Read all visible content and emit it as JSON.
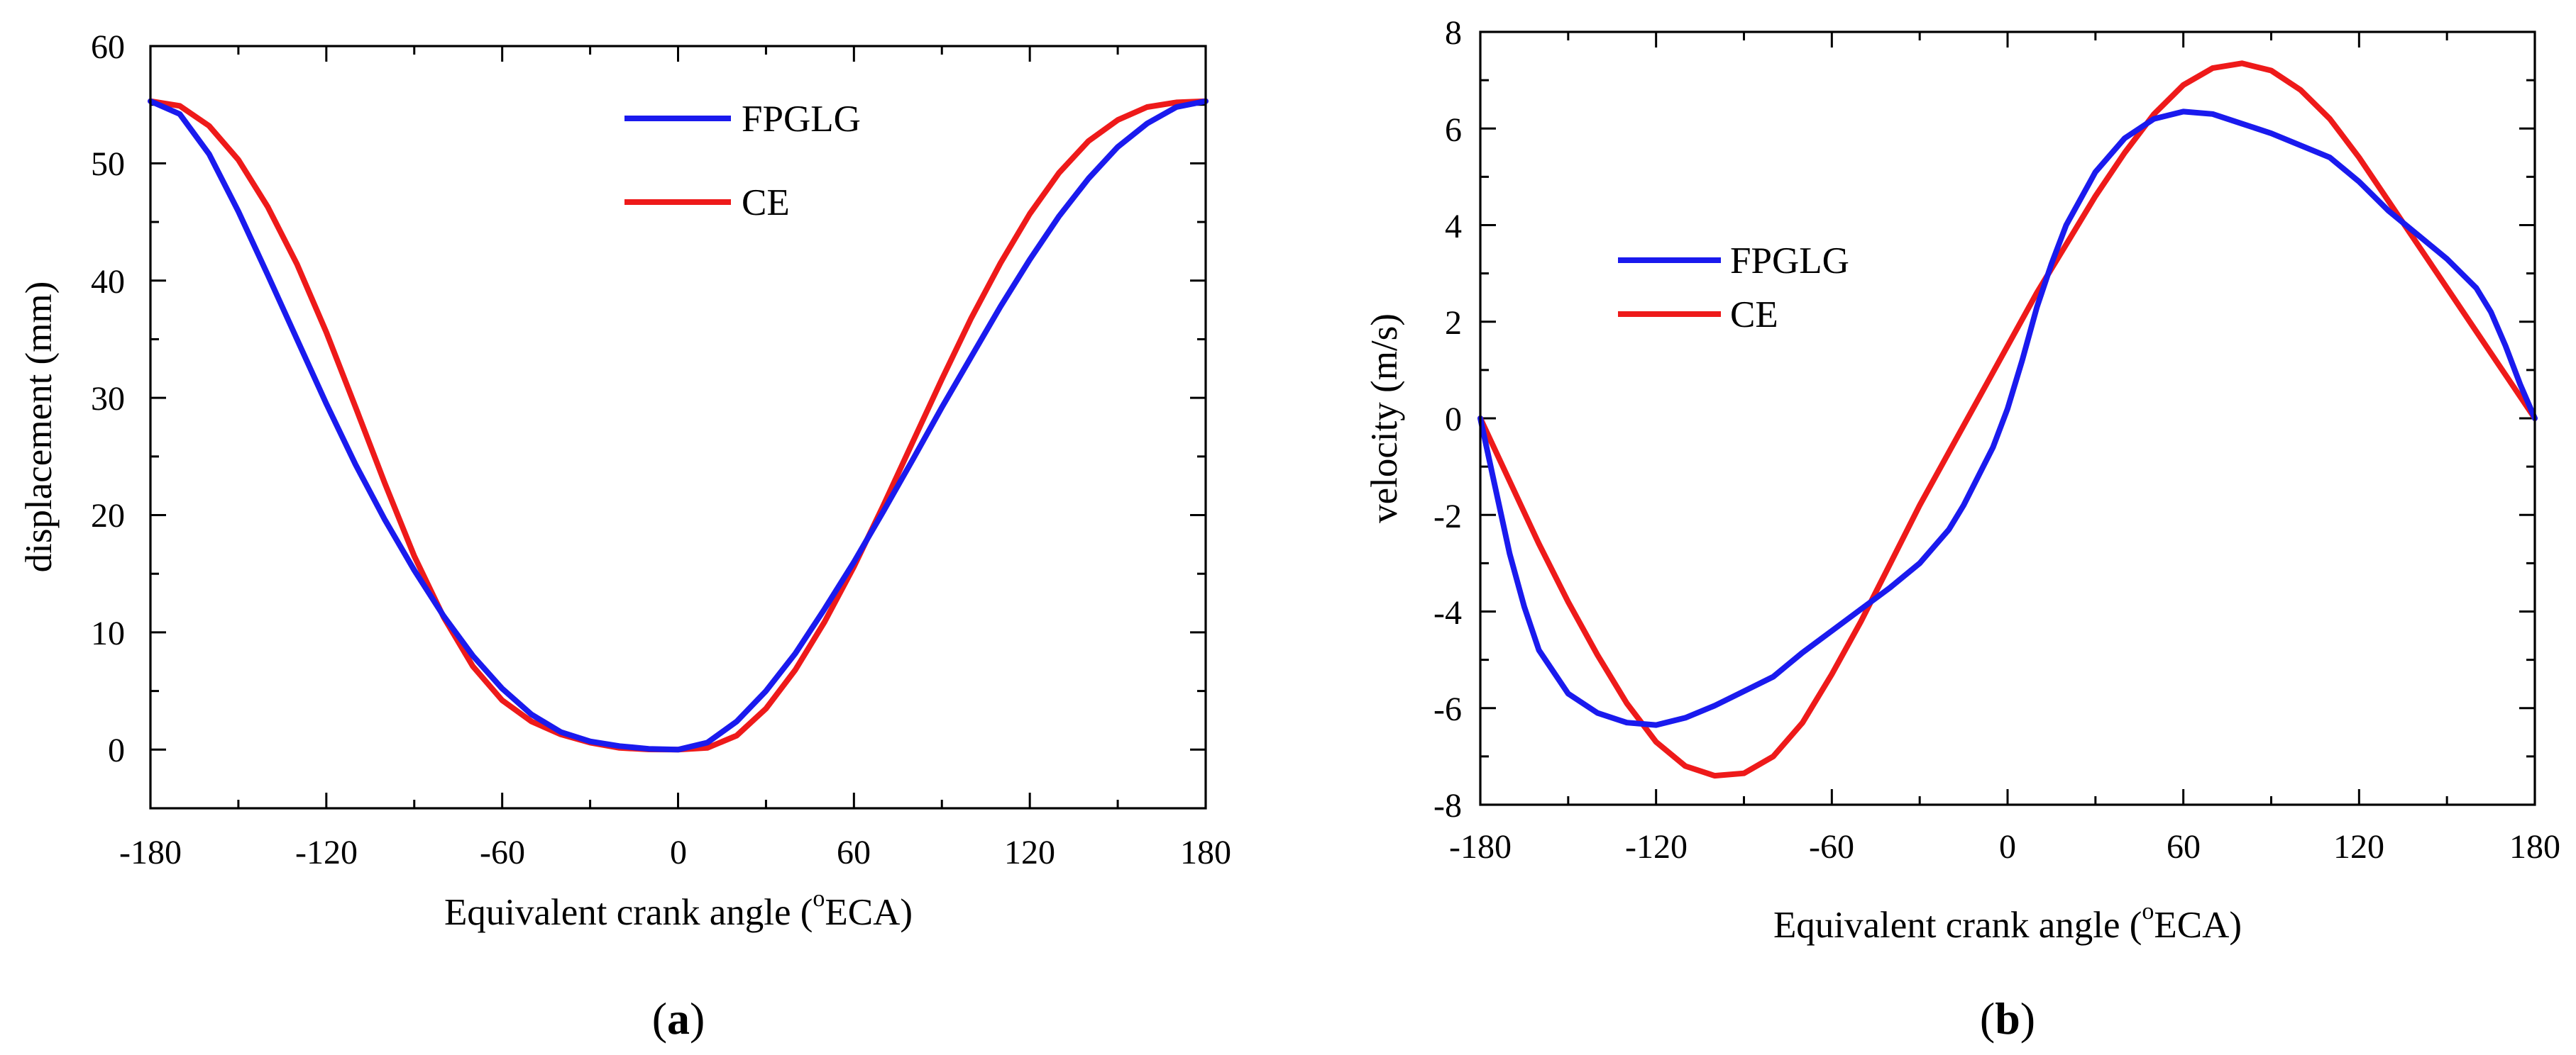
{
  "chart_data": [
    {
      "type": "line",
      "panel_label": "a",
      "xlabel": "Equivalent crank angle (",
      "xlabel_superscript": "o",
      "xlabel_suffix": "ECA)",
      "ylabel": "displacement (mm)",
      "xlim": [
        -180,
        180
      ],
      "ylim": [
        -5,
        60
      ],
      "xticks": [
        "-180",
        "-120",
        "-60",
        "0",
        "60",
        "120",
        "180"
      ],
      "yticks": [
        "0",
        "10",
        "20",
        "30",
        "40",
        "50",
        "60"
      ],
      "legend_position": "top-center",
      "series": [
        {
          "name": "FPGLG",
          "color": "#1a1aee",
          "points": [
            [
              -180,
              55.3
            ],
            [
              -170,
              54.2
            ],
            [
              -160,
              50.8
            ],
            [
              -150,
              45.9
            ],
            [
              -140,
              40.5
            ],
            [
              -130,
              35.0
            ],
            [
              -120,
              29.5
            ],
            [
              -110,
              24.3
            ],
            [
              -100,
              19.6
            ],
            [
              -90,
              15.3
            ],
            [
              -80,
              11.4
            ],
            [
              -70,
              8.0
            ],
            [
              -60,
              5.2
            ],
            [
              -50,
              3.0
            ],
            [
              -40,
              1.5
            ],
            [
              -30,
              0.7
            ],
            [
              -20,
              0.3
            ],
            [
              -10,
              0.07
            ],
            [
              0,
              0
            ],
            [
              10,
              0.6
            ],
            [
              20,
              2.4
            ],
            [
              30,
              5.0
            ],
            [
              40,
              8.2
            ],
            [
              50,
              12.0
            ],
            [
              60,
              16.0
            ],
            [
              70,
              20.3
            ],
            [
              80,
              24.7
            ],
            [
              90,
              29.2
            ],
            [
              100,
              33.5
            ],
            [
              110,
              37.8
            ],
            [
              120,
              41.8
            ],
            [
              130,
              45.5
            ],
            [
              140,
              48.7
            ],
            [
              150,
              51.4
            ],
            [
              160,
              53.4
            ],
            [
              170,
              54.8
            ],
            [
              180,
              55.3
            ]
          ]
        },
        {
          "name": "CE",
          "color": "#ee1a1a",
          "points": [
            [
              -180,
              55.3
            ],
            [
              -170,
              54.9
            ],
            [
              -160,
              53.2
            ],
            [
              -150,
              50.3
            ],
            [
              -140,
              46.3
            ],
            [
              -130,
              41.4
            ],
            [
              -120,
              35.6
            ],
            [
              -110,
              29.2
            ],
            [
              -100,
              22.7
            ],
            [
              -90,
              16.5
            ],
            [
              -80,
              11.3
            ],
            [
              -70,
              7.1
            ],
            [
              -60,
              4.2
            ],
            [
              -50,
              2.4
            ],
            [
              -40,
              1.3
            ],
            [
              -30,
              0.6
            ],
            [
              -20,
              0.15
            ],
            [
              -10,
              0.02
            ],
            [
              0,
              0
            ],
            [
              10,
              0.15
            ],
            [
              20,
              1.2
            ],
            [
              30,
              3.5
            ],
            [
              40,
              6.8
            ],
            [
              50,
              10.9
            ],
            [
              60,
              15.6
            ],
            [
              70,
              20.8
            ],
            [
              80,
              26.2
            ],
            [
              90,
              31.6
            ],
            [
              100,
              36.8
            ],
            [
              110,
              41.5
            ],
            [
              120,
              45.7
            ],
            [
              130,
              49.2
            ],
            [
              140,
              51.9
            ],
            [
              150,
              53.7
            ],
            [
              160,
              54.8
            ],
            [
              170,
              55.2
            ],
            [
              180,
              55.3
            ]
          ]
        }
      ]
    },
    {
      "type": "line",
      "panel_label": "b",
      "xlabel": "Equivalent crank angle (",
      "xlabel_superscript": "o",
      "xlabel_suffix": "ECA)",
      "ylabel": "velocity (m/s)",
      "xlim": [
        -180,
        180
      ],
      "ylim": [
        -8,
        8
      ],
      "xticks": [
        "-180",
        "-120",
        "-60",
        "0",
        "60",
        "120",
        "180"
      ],
      "yticks": [
        "-8",
        "-6",
        "-4",
        "-2",
        "0",
        "2",
        "4",
        "6",
        "8"
      ],
      "legend_position": "center-left",
      "series": [
        {
          "name": "FPGLG",
          "color": "#1a1aee",
          "points": [
            [
              -180,
              0
            ],
            [
              -175,
              -1.4
            ],
            [
              -170,
              -2.8
            ],
            [
              -165,
              -3.9
            ],
            [
              -160,
              -4.8
            ],
            [
              -150,
              -5.7
            ],
            [
              -140,
              -6.1
            ],
            [
              -130,
              -6.3
            ],
            [
              -120,
              -6.35
            ],
            [
              -110,
              -6.2
            ],
            [
              -100,
              -5.95
            ],
            [
              -90,
              -5.65
            ],
            [
              -80,
              -5.35
            ],
            [
              -75,
              -5.1
            ],
            [
              -70,
              -4.85
            ],
            [
              -60,
              -4.4
            ],
            [
              -50,
              -3.95
            ],
            [
              -40,
              -3.5
            ],
            [
              -30,
              -3.0
            ],
            [
              -20,
              -2.3
            ],
            [
              -15,
              -1.8
            ],
            [
              -10,
              -1.2
            ],
            [
              -5,
              -0.6
            ],
            [
              0,
              0.2
            ],
            [
              5,
              1.2
            ],
            [
              10,
              2.3
            ],
            [
              15,
              3.2
            ],
            [
              20,
              4.0
            ],
            [
              30,
              5.1
            ],
            [
              40,
              5.8
            ],
            [
              50,
              6.2
            ],
            [
              60,
              6.35
            ],
            [
              70,
              6.3
            ],
            [
              80,
              6.1
            ],
            [
              90,
              5.9
            ],
            [
              100,
              5.65
            ],
            [
              110,
              5.4
            ],
            [
              120,
              4.9
            ],
            [
              130,
              4.3
            ],
            [
              140,
              3.8
            ],
            [
              150,
              3.3
            ],
            [
              160,
              2.7
            ],
            [
              165,
              2.2
            ],
            [
              170,
              1.5
            ],
            [
              175,
              0.7
            ],
            [
              180,
              0
            ]
          ]
        },
        {
          "name": "CE",
          "color": "#ee1a1a",
          "points": [
            [
              -180,
              0
            ],
            [
              -170,
              -1.3
            ],
            [
              -160,
              -2.6
            ],
            [
              -150,
              -3.8
            ],
            [
              -140,
              -4.9
            ],
            [
              -130,
              -5.9
            ],
            [
              -120,
              -6.7
            ],
            [
              -110,
              -7.2
            ],
            [
              -100,
              -7.4
            ],
            [
              -90,
              -7.35
            ],
            [
              -80,
              -7.0
            ],
            [
              -70,
              -6.3
            ],
            [
              -60,
              -5.3
            ],
            [
              -50,
              -4.2
            ],
            [
              -40,
              -3.0
            ],
            [
              -30,
              -1.8
            ],
            [
              -20,
              -0.7
            ],
            [
              -10,
              0.4
            ],
            [
              0,
              1.5
            ],
            [
              10,
              2.6
            ],
            [
              20,
              3.6
            ],
            [
              30,
              4.6
            ],
            [
              40,
              5.5
            ],
            [
              50,
              6.3
            ],
            [
              60,
              6.9
            ],
            [
              70,
              7.25
            ],
            [
              80,
              7.35
            ],
            [
              90,
              7.2
            ],
            [
              100,
              6.8
            ],
            [
              110,
              6.2
            ],
            [
              120,
              5.4
            ],
            [
              130,
              4.5
            ],
            [
              140,
              3.6
            ],
            [
              150,
              2.7
            ],
            [
              160,
              1.8
            ],
            [
              170,
              0.9
            ],
            [
              180,
              0
            ]
          ]
        }
      ]
    }
  ]
}
